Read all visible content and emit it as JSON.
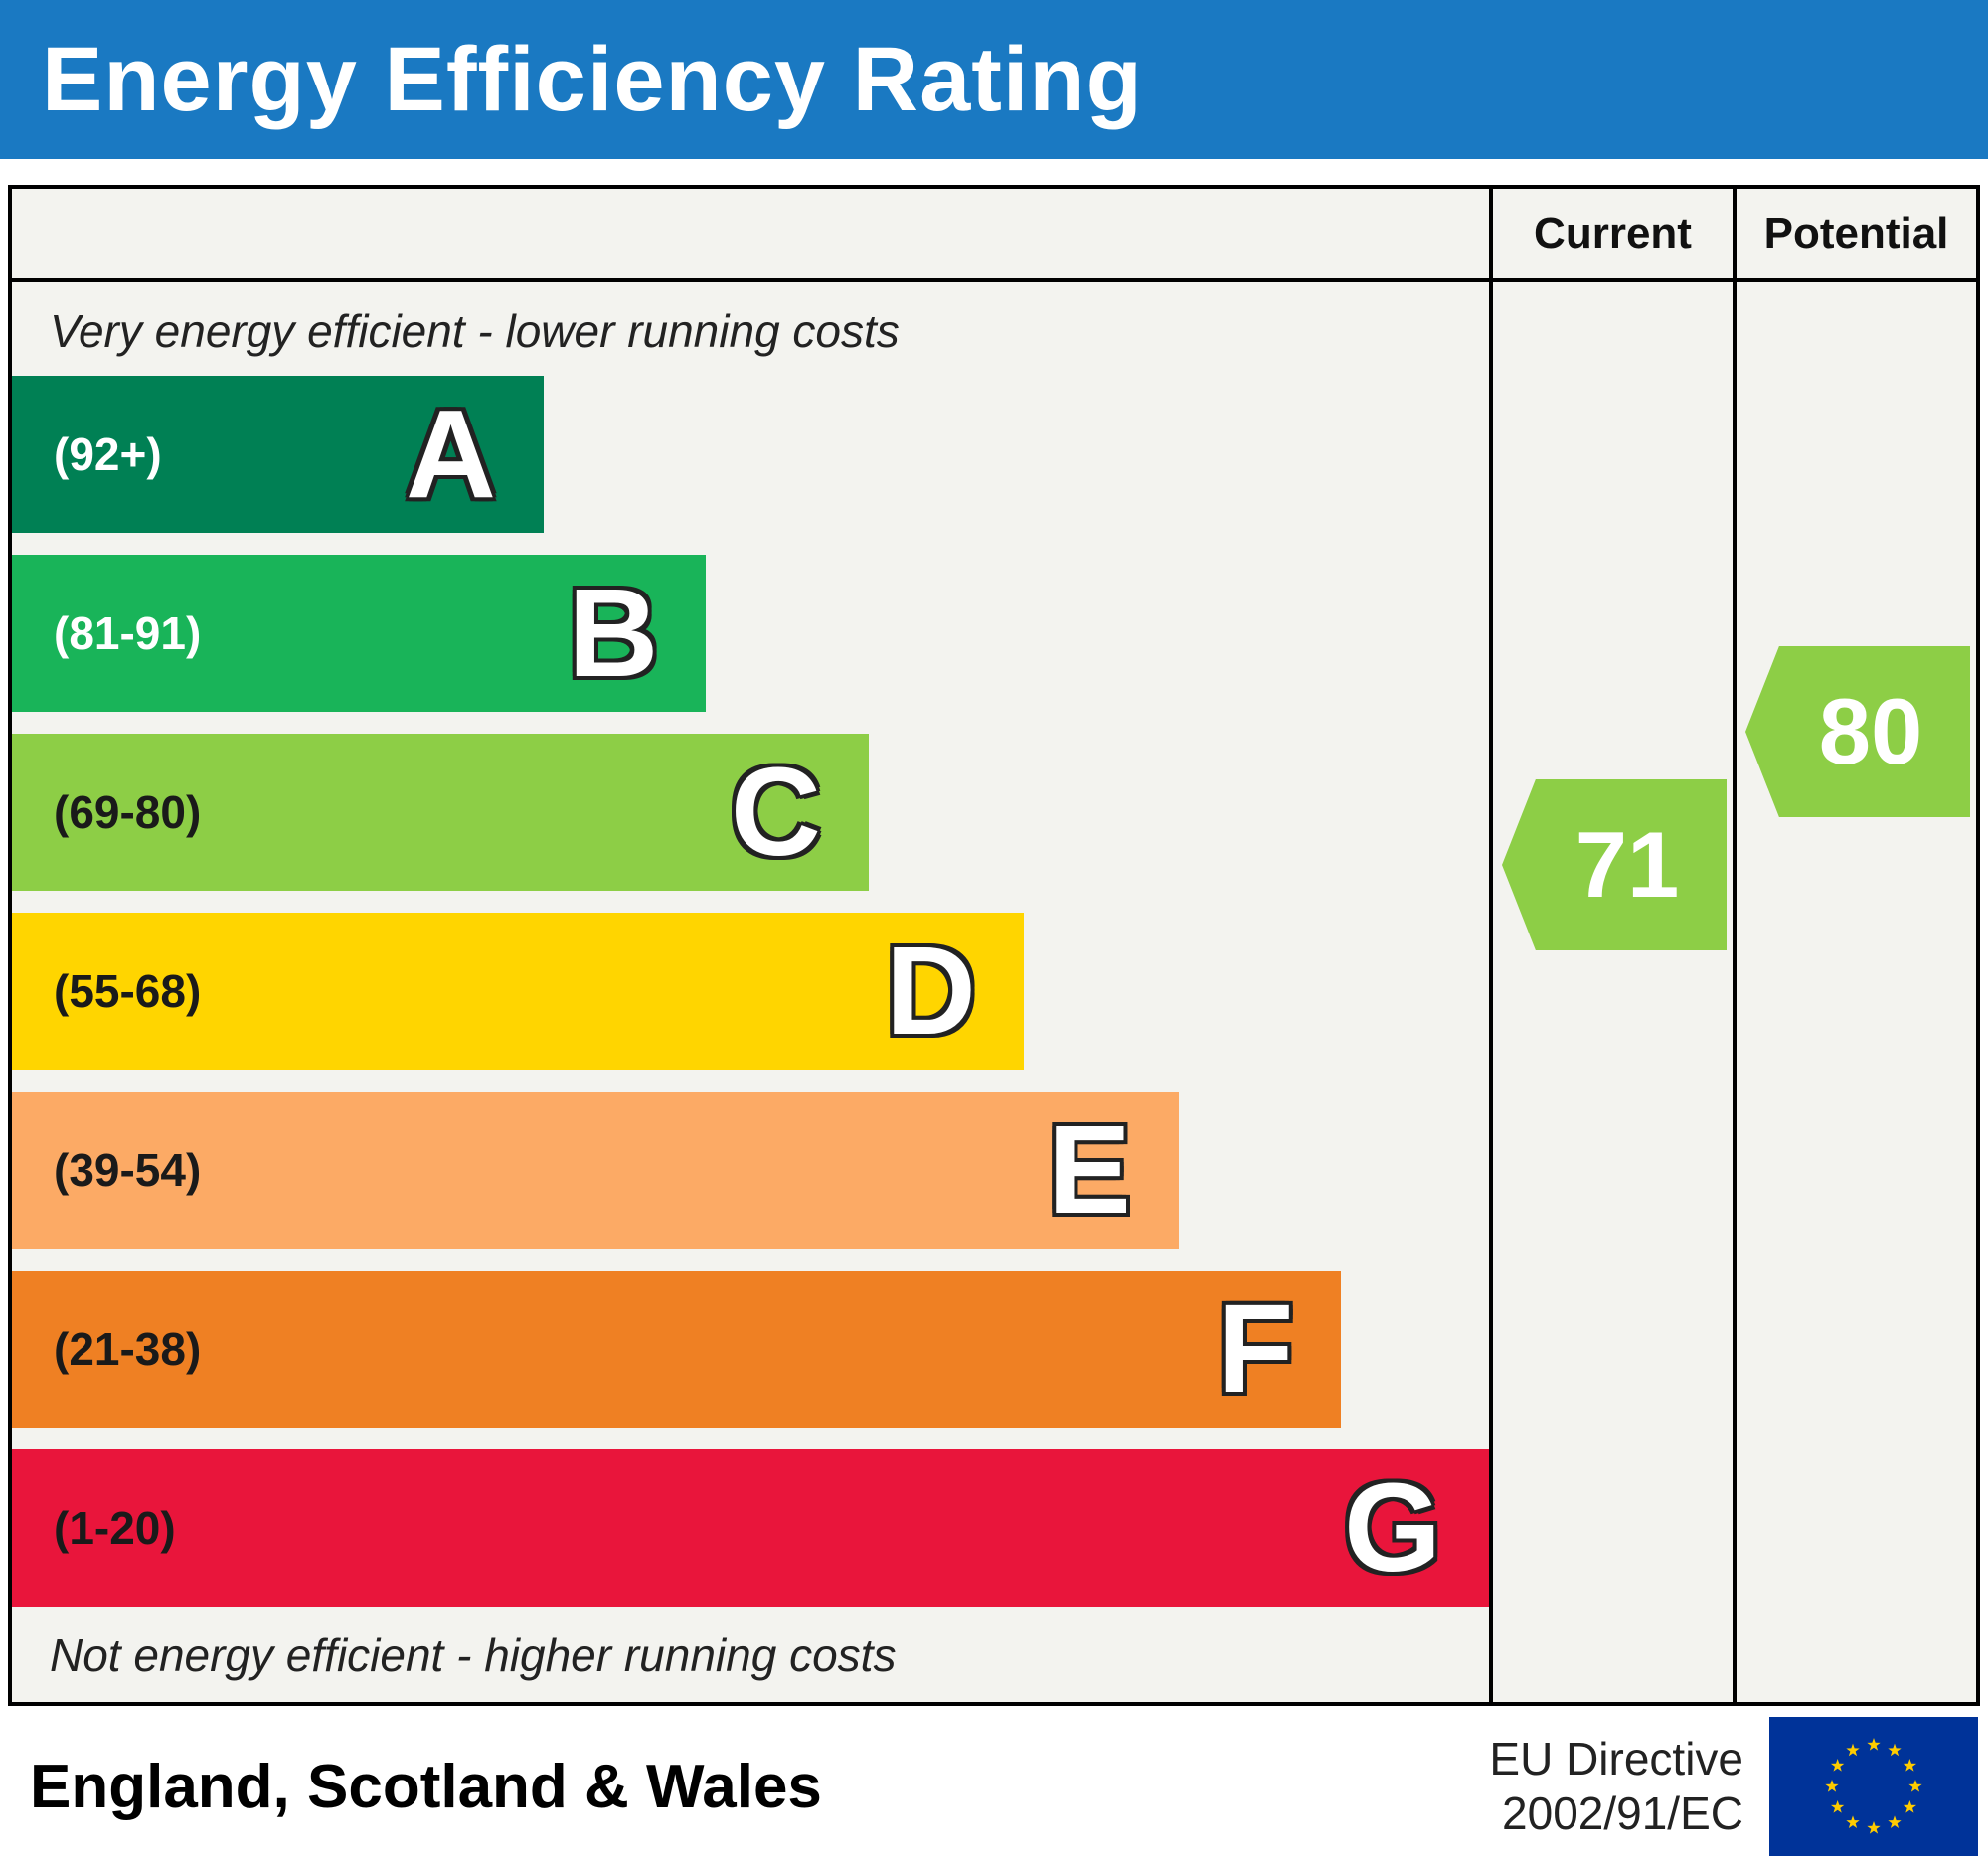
{
  "title": "Energy Efficiency Rating",
  "columns": {
    "current": "Current",
    "potential": "Potential"
  },
  "notes": {
    "top": "Very energy efficient - lower running costs",
    "bottom": "Not energy efficient - higher running costs"
  },
  "footer": {
    "region": "England, Scotland & Wales",
    "directive_line1": "EU Directive",
    "directive_line2": "2002/91/EC"
  },
  "colors": {
    "header_background": "#1a79c2",
    "eu_flag_blue": "#003399",
    "eu_flag_star": "#ffcc00"
  },
  "chart_data": {
    "type": "bar",
    "orientation": "horizontal",
    "title": "Energy Efficiency Rating",
    "bands": [
      {
        "letter": "A",
        "range": "(92+)",
        "color": "#008054",
        "width_pct": 36,
        "range_label_color": "#ffffff"
      },
      {
        "letter": "B",
        "range": "(81-91)",
        "color": "#19b459",
        "width_pct": 47,
        "range_label_color": "#ffffff"
      },
      {
        "letter": "C",
        "range": "(69-80)",
        "color": "#8dce46",
        "width_pct": 58,
        "range_label_color": "#1a1a1a"
      },
      {
        "letter": "D",
        "range": "(55-68)",
        "color": "#ffd500",
        "width_pct": 68.5,
        "range_label_color": "#1a1a1a"
      },
      {
        "letter": "E",
        "range": "(39-54)",
        "color": "#fcaa65",
        "width_pct": 79,
        "range_label_color": "#1a1a1a"
      },
      {
        "letter": "F",
        "range": "(21-38)",
        "color": "#ef8023",
        "width_pct": 90,
        "range_label_color": "#1a1a1a"
      },
      {
        "letter": "G",
        "range": "(1-20)",
        "color": "#e9153b",
        "width_pct": 100,
        "range_label_color": "#1a1a1a"
      }
    ],
    "current": {
      "value": 71,
      "band": "C",
      "color": "#8dce46"
    },
    "potential": {
      "value": 80,
      "band": "C",
      "color": "#8dce46"
    }
  }
}
